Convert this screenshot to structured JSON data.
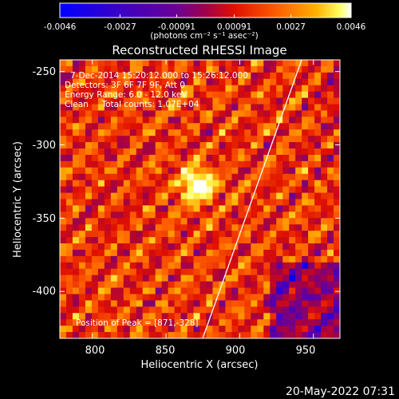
{
  "colorbar": {
    "tick_labels": [
      "-0.0046",
      "-0.0027",
      "-0.00091",
      "0.00091",
      "0.0027",
      "0.0046"
    ],
    "unit_label": "(photons cm⁻² s⁻¹ asec⁻²)",
    "range": [
      -0.0046,
      0.0046
    ]
  },
  "chart": {
    "title": "Reconstructed RHESSI Image",
    "xlabel": "Heliocentric X (arcsec)",
    "ylabel": "Heliocentric Y (arcsec)",
    "x_ticks": [
      "800",
      "850",
      "900",
      "950"
    ],
    "y_ticks": [
      "-250",
      "-300",
      "-350",
      "-400"
    ],
    "info_lines": [
      "7-Dec-2014 15:20:12.000 to 15:26:12.000",
      "Detectors: 3F 6F 7F 9F, Att 0",
      "Energy Range: 6.0 - 12.0 keV",
      "Clean     Total counts: 1.07E+04"
    ],
    "peak_text": "Position of Peak = [871,-328]"
  },
  "timestamp": "20-May-2022 07:31",
  "chart_data": {
    "type": "heatmap",
    "title": "Reconstructed RHESSI Image",
    "xlabel": "Heliocentric X (arcsec)",
    "ylabel": "Heliocentric Y (arcsec)",
    "xlim": [
      778,
      968
    ],
    "ylim": [
      -432,
      -242
    ],
    "x_ticks": [
      800,
      850,
      900,
      950
    ],
    "y_ticks": [
      -250,
      -300,
      -350,
      -400
    ],
    "colorbar_range": [
      -0.0046,
      0.0046
    ],
    "colorbar_ticks": [
      -0.0046,
      -0.0027,
      -0.00091,
      0.00091,
      0.0027,
      0.0046
    ],
    "colormap": [
      "#0000ff",
      "#3a00c8",
      "#6a0096",
      "#a0004a",
      "#e01000",
      "#ff6000",
      "#ffb000",
      "#ffff60",
      "#ffffff"
    ],
    "peak": [
      871,
      -328
    ],
    "limb_arc_points": [
      [
        920,
        -242
      ],
      [
        900,
        -330
      ],
      [
        865,
        -432
      ]
    ]
  }
}
